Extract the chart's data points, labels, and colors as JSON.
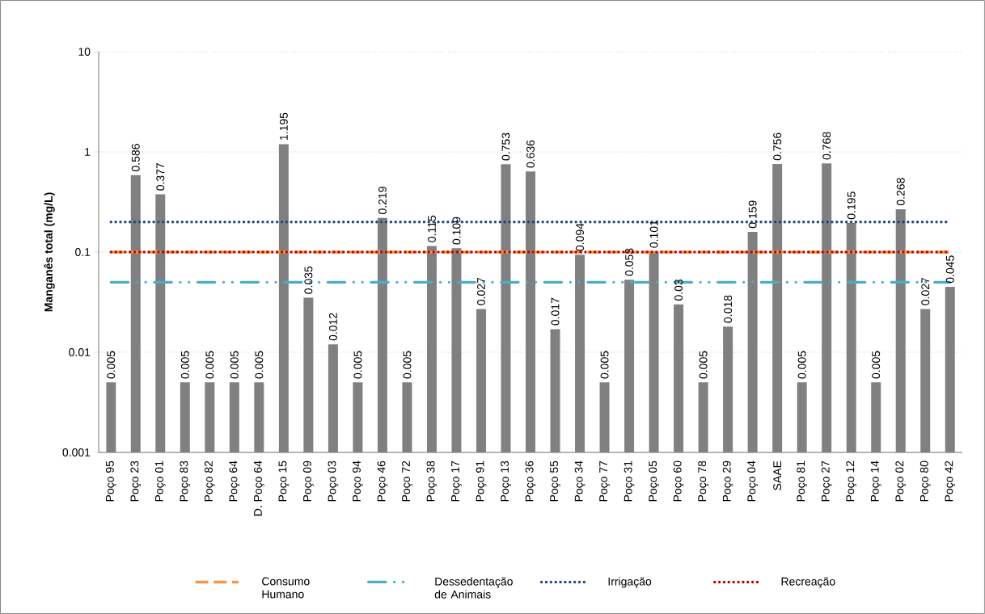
{
  "chart_data": {
    "type": "bar",
    "ylabel": "Manganês total (mg/L)",
    "categories": [
      "Poço 95",
      "Poço 23",
      "Poço 01",
      "Poço 83",
      "Poço 82",
      "Poço 64",
      "D. Poço 64",
      "Poço 15",
      "Poço 09",
      "Poço 03",
      "Poço 94",
      "Poço 46",
      "Poço 72",
      "Poço 38",
      "Poço 17",
      "Poço 91",
      "Poço 13",
      "Poço 36",
      "Poço 55",
      "Poço 34",
      "Poço 77",
      "Poço 31",
      "Poço 05",
      "Poço 60",
      "Poço 78",
      "Poço 29",
      "Poço 04",
      "SAAE",
      "Poço 81",
      "Poço 27",
      "Poço 12",
      "Poço 14",
      "Poço 02",
      "Poço 80",
      "Poço 42"
    ],
    "values": [
      0.005,
      0.586,
      0.377,
      0.005,
      0.005,
      0.005,
      0.005,
      1.195,
      0.035,
      0.012,
      0.005,
      0.219,
      0.005,
      0.115,
      0.109,
      0.027,
      0.753,
      0.636,
      0.017,
      0.094,
      0.005,
      0.053,
      0.101,
      0.03,
      0.005,
      0.018,
      0.159,
      0.756,
      0.005,
      0.768,
      0.195,
      0.005,
      0.268,
      0.027,
      0.045
    ],
    "color": "#808080",
    "data_labels": true,
    "log": "y",
    "ylim": [
      0.001,
      10
    ],
    "yticks": [
      0.001,
      0.01,
      0.1,
      1,
      10
    ],
    "grid": "y",
    "legend": "bottom",
    "ref_lines": [
      {
        "axis": "y",
        "value": 0.1,
        "label": "Consumo Humano",
        "color": "#f79646",
        "line_style": "dashed"
      },
      {
        "axis": "y",
        "value": 0.05,
        "label": "Dessedentação de Animais",
        "color": "#4bacc6",
        "line_style": "dashdot"
      },
      {
        "axis": "y",
        "value": 0.2,
        "label": "Irrigação",
        "color": "#1f497d",
        "line_style": "dotted"
      },
      {
        "axis": "y",
        "value": 0.1,
        "label": "Recreação",
        "color": "#c00000",
        "line_style": "dotted"
      }
    ]
  }
}
